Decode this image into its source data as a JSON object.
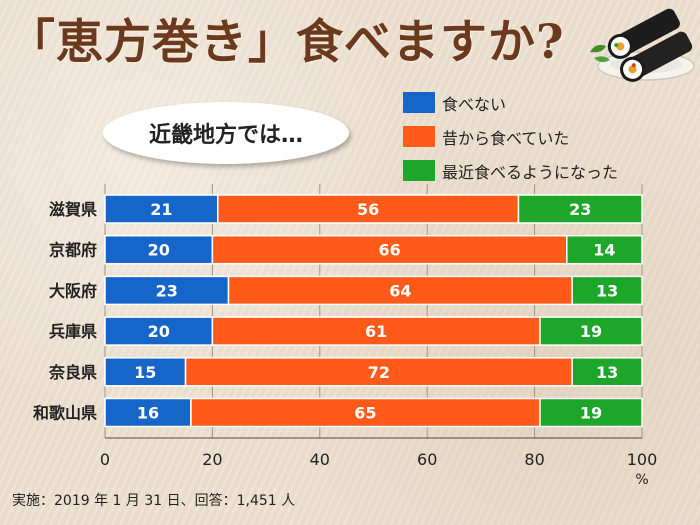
{
  "header": {
    "title": "「恵方巻き」食べますか?"
  },
  "region_label": "近畿地方では…",
  "footnote": "実施：2019 年 1 月 31 日、回答：1,451 人",
  "icons": {
    "header_decoration": "ehomaki-sushi-roll-plate-icon"
  },
  "colors": {
    "blue": "#1666c9",
    "orange": "#ff5a1a",
    "green": "#1ea62a"
  },
  "chart_data": {
    "type": "bar",
    "orientation": "horizontal",
    "stacked": true,
    "categories": [
      "滋賀県",
      "京都府",
      "大阪府",
      "兵庫県",
      "奈良県",
      "和歌山県"
    ],
    "series": [
      {
        "name": "食べない",
        "color": "#1666c9",
        "values": [
          21,
          20,
          23,
          20,
          15,
          16
        ]
      },
      {
        "name": "昔から食べていた",
        "color": "#ff5a1a",
        "values": [
          56,
          66,
          64,
          61,
          72,
          65
        ]
      },
      {
        "name": "最近食べるようになった",
        "color": "#1ea62a",
        "values": [
          23,
          14,
          13,
          19,
          13,
          19
        ]
      }
    ],
    "xlim": [
      0,
      100
    ],
    "xticks": [
      "0",
      "20",
      "40",
      "60",
      "80",
      "100"
    ],
    "x_unit": "%",
    "grid": true,
    "legend": "top-right"
  }
}
